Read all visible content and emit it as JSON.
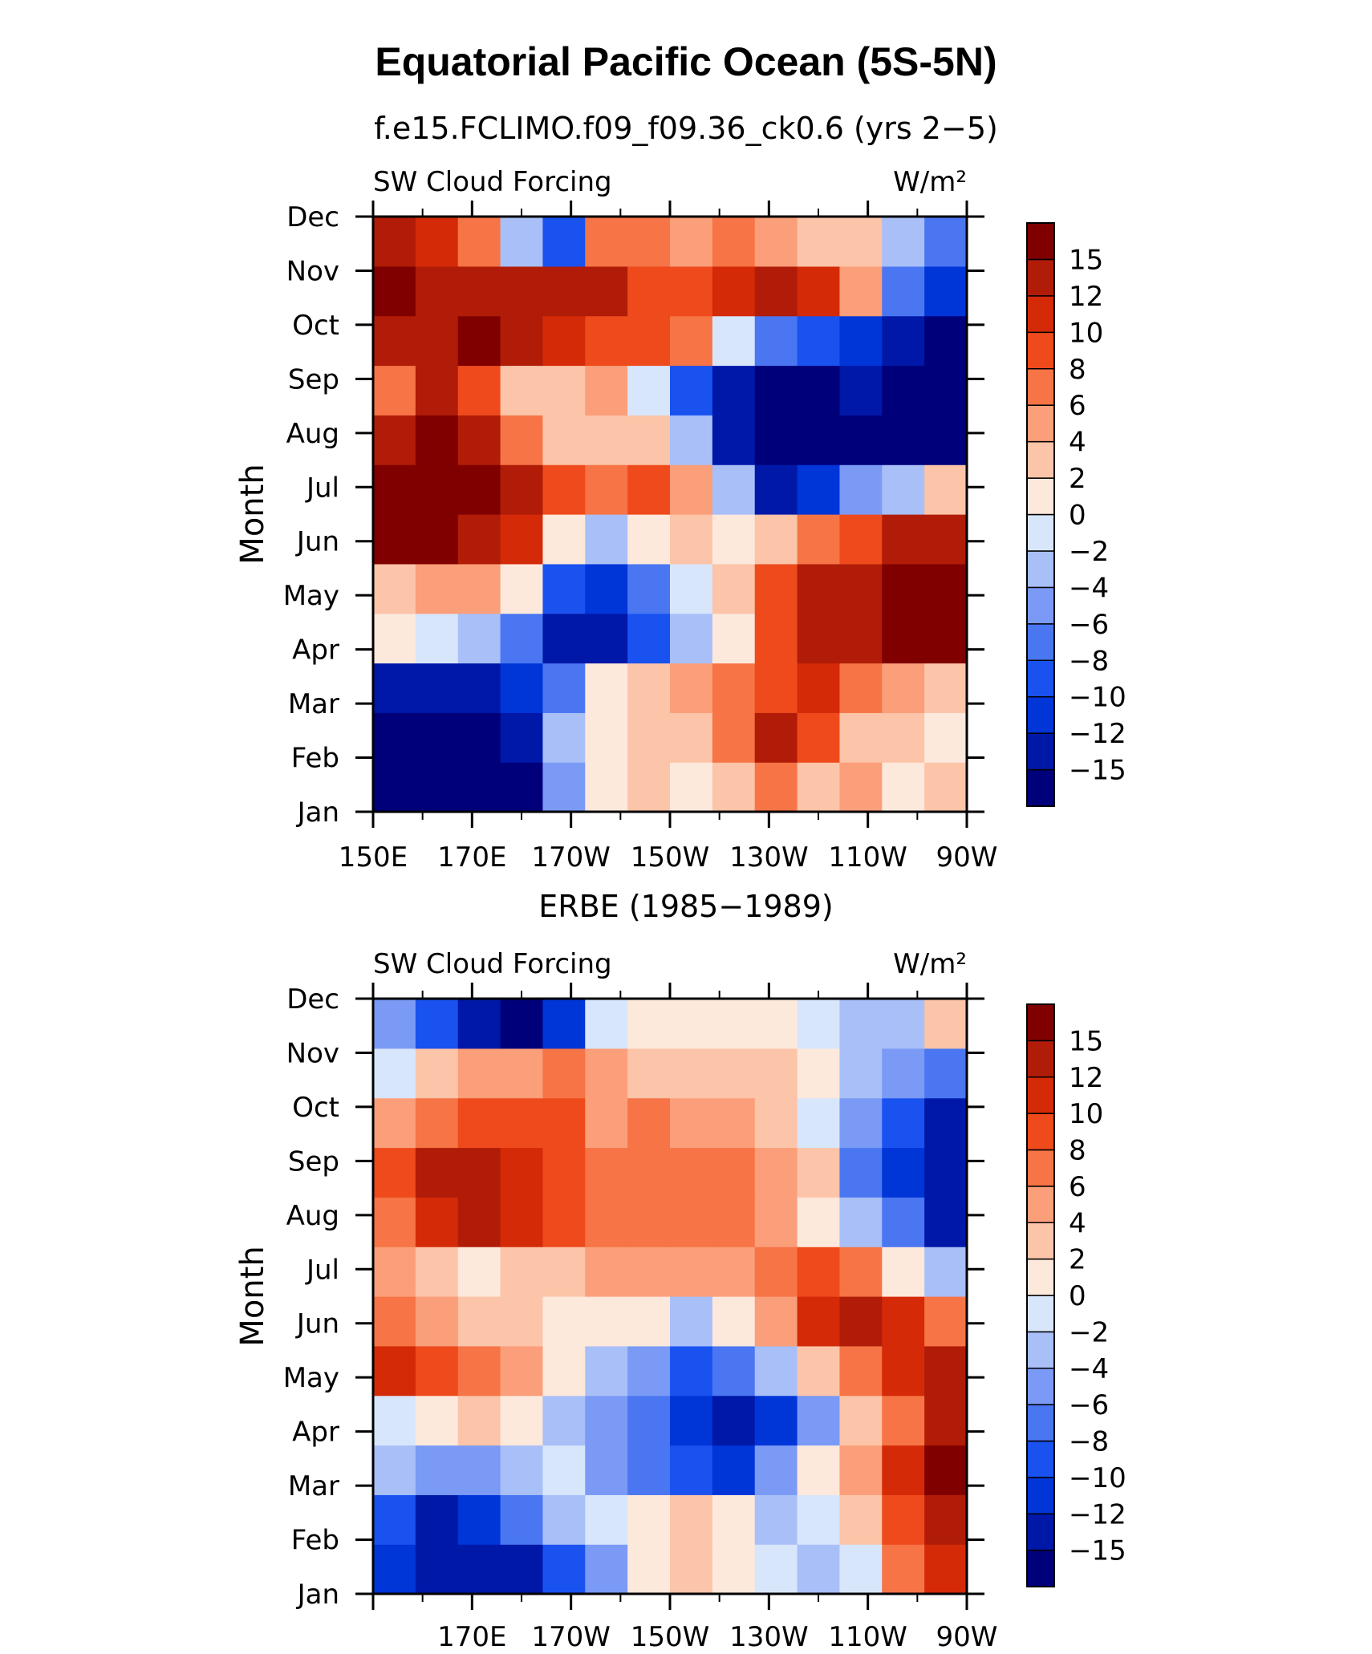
{
  "title": "Equatorial Pacific Ocean (5S-5N)",
  "colorbar": {
    "levels": [
      -15,
      -12,
      -10,
      -8,
      -6,
      -4,
      -2,
      0,
      2,
      4,
      6,
      8,
      10,
      12,
      15
    ],
    "labels": [
      "−15",
      "−12",
      "−10",
      "−8",
      "−6",
      "−4",
      "−2",
      "0",
      "2",
      "4",
      "6",
      "8",
      "10",
      "12",
      "15"
    ],
    "colors": [
      "#00007a",
      "#0018a8",
      "#0035d8",
      "#1a52f0",
      "#4a76f2",
      "#7a9af5",
      "#a8bff8",
      "#d8e6fc",
      "#fde8dc",
      "#fcc4a8",
      "#fb9e7a",
      "#f67445",
      "#ee4a1c",
      "#d42a08",
      "#b01c08",
      "#800000"
    ]
  },
  "chart_data": [
    {
      "type": "heatmap",
      "panel_title": "f.e15.FCLIMO.f09_f09.36_ck0.6 (yrs 2−5)",
      "left_label": "SW Cloud Forcing",
      "right_label": "W/m²",
      "ylabel": "Month",
      "xticks": [
        "150E",
        "170E",
        "170W",
        "150W",
        "130W",
        "110W",
        "90W"
      ],
      "yticks": [
        "Jan",
        "Feb",
        "Mar",
        "Apr",
        "May",
        "Jun",
        "Jul",
        "Aug",
        "Sep",
        "Oct",
        "Nov",
        "Dec"
      ],
      "x_range": [
        "150E",
        "90W"
      ],
      "values": [
        [
          -16,
          -16,
          -16,
          -16,
          -5,
          1,
          3,
          1,
          3,
          6,
          3,
          4,
          1,
          2
        ],
        [
          -16,
          -16,
          -16,
          -15,
          -3,
          1,
          3,
          2,
          6,
          13,
          9,
          3,
          2,
          1
        ],
        [
          -15,
          -15,
          -15,
          -12,
          -7,
          1,
          2,
          4,
          6,
          8,
          10,
          6,
          4,
          3
        ],
        [
          1,
          -2,
          -3,
          -8,
          -14,
          -14,
          -10,
          -4,
          1,
          8,
          12,
          14,
          15,
          15
        ],
        [
          3,
          4,
          5,
          1,
          -10,
          -12,
          -8,
          -1,
          2,
          8,
          13,
          14,
          16,
          16
        ],
        [
          15,
          16,
          14,
          10,
          1,
          -4,
          0,
          2,
          1,
          3,
          6,
          8,
          12,
          14
        ],
        [
          16,
          16,
          15,
          13,
          8,
          6,
          8,
          4,
          -4,
          -13,
          -12,
          -6,
          -3,
          2
        ],
        [
          14,
          16,
          13,
          7,
          3,
          3,
          2,
          -3,
          -14,
          -16,
          -16,
          -16,
          -16,
          -16
        ],
        [
          6,
          12,
          8,
          3,
          2,
          4,
          -2,
          -10,
          -14,
          -16,
          -16,
          -14,
          -16,
          -16
        ],
        [
          12,
          14,
          15,
          14,
          10,
          9,
          8,
          6,
          -2,
          -8,
          -10,
          -12,
          -14,
          -16
        ],
        [
          15,
          14,
          13,
          14,
          13,
          12,
          9,
          8,
          10,
          12,
          10,
          4,
          -8,
          -12
        ],
        [
          12,
          10,
          6,
          -4,
          -9,
          6,
          6,
          5,
          6,
          4,
          3,
          2,
          -3,
          -8
        ]
      ]
    },
    {
      "type": "heatmap",
      "panel_title": "ERBE (1985−1989)",
      "left_label": "SW Cloud Forcing",
      "right_label": "W/m²",
      "ylabel": "Month",
      "xticks": [
        "170E",
        "170W",
        "150W",
        "130W",
        "110W",
        "90W"
      ],
      "yticks": [
        "Jan",
        "Feb",
        "Mar",
        "Apr",
        "May",
        "Jun",
        "Jul",
        "Aug",
        "Sep",
        "Oct",
        "Nov",
        "Dec"
      ],
      "x_range": [
        "150E",
        "90W"
      ],
      "values": [
        [
          -12,
          -14,
          -14,
          -15,
          -10,
          -5,
          1,
          2,
          1,
          -1,
          -3,
          -2,
          6,
          10
        ],
        [
          -10,
          -14,
          -12,
          -8,
          -4,
          -2,
          1,
          2,
          1,
          -3,
          -2,
          2,
          8,
          14
        ],
        [
          -4,
          -6,
          -6,
          -4,
          -2,
          -5,
          -8,
          -10,
          -11,
          -6,
          1,
          4,
          10,
          15
        ],
        [
          -2,
          1,
          2,
          1,
          -4,
          -6,
          -8,
          -12,
          -13,
          -12,
          -6,
          2,
          6,
          12
        ],
        [
          10,
          8,
          6,
          4,
          1,
          -3,
          -6,
          -10,
          -8,
          -3,
          2,
          6,
          10,
          12
        ],
        [
          7,
          5,
          3,
          3,
          1,
          1,
          1,
          -3,
          0,
          4,
          10,
          13,
          10,
          6
        ],
        [
          4,
          3,
          1,
          2,
          3,
          4,
          4,
          5,
          4,
          6,
          8,
          6,
          0,
          -4
        ],
        [
          6,
          10,
          13,
          11,
          8,
          6,
          6,
          7,
          6,
          4,
          1,
          -4,
          -8,
          -14
        ],
        [
          9,
          12,
          14,
          10,
          8,
          6,
          6,
          6,
          6,
          5,
          2,
          -8,
          -12,
          -14
        ],
        [
          5,
          7,
          8,
          9,
          8,
          5,
          6,
          5,
          4,
          2,
          -2,
          -6,
          -10,
          -14
        ],
        [
          -2,
          2,
          4,
          5,
          6,
          4,
          3,
          2,
          2,
          3,
          1,
          -3,
          -6,
          -8
        ],
        [
          -5,
          -10,
          -14,
          -16,
          -12,
          -2,
          1,
          1,
          1,
          0,
          -2,
          -3,
          -3,
          2
        ]
      ]
    }
  ]
}
